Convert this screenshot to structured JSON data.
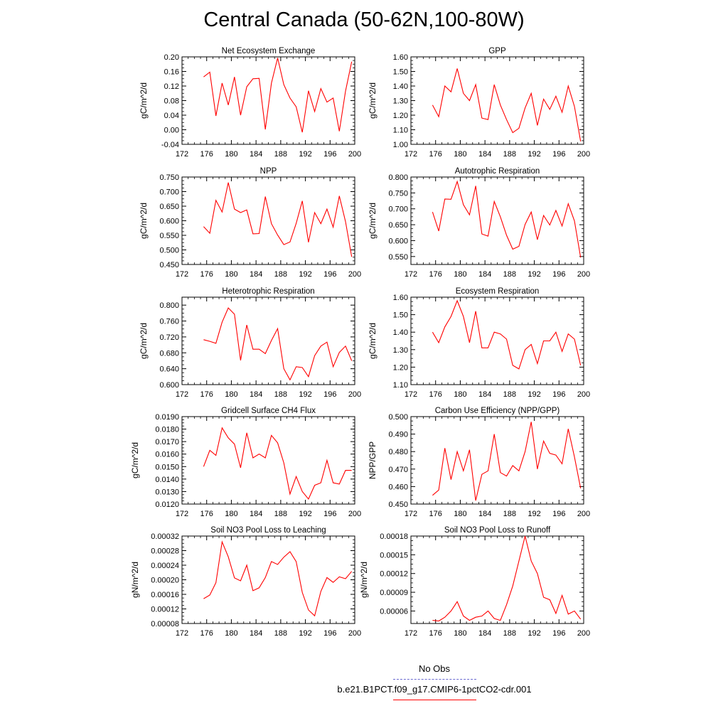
{
  "title": "Central Canada (50-62N,100-80W)",
  "colors": {
    "series": "#ff0000",
    "obs": "#6a6ad0",
    "axis": "#000000"
  },
  "legend": {
    "obs_label": "No Obs",
    "model_label": "b.e21.B1PCT.f09_g17.CMIP6-1pctCO2-cdr.001"
  },
  "chart_data": [
    {
      "type": "line",
      "title": "Net Ecosystem Exchange",
      "ylabel": "gC/m^2/d",
      "xlim": [
        172,
        200
      ],
      "ylim": [
        -0.04,
        0.2
      ],
      "yticks": [
        "-0.04",
        "0.00",
        "0.04",
        "0.08",
        "0.12",
        "0.16",
        "0.20"
      ],
      "xticks": [
        "172",
        "176",
        "180",
        "184",
        "188",
        "192",
        "196",
        "200"
      ],
      "x": [
        175.5,
        176.5,
        177.5,
        178.5,
        179.5,
        180.5,
        181.5,
        182.5,
        183.5,
        184.5,
        185.5,
        186.5,
        187.5,
        188.5,
        189.5,
        190.5,
        191.5,
        192.5,
        193.5,
        194.5,
        195.5,
        196.5,
        197.5,
        198.5,
        199.5
      ],
      "y": [
        0.145,
        0.158,
        0.038,
        0.128,
        0.068,
        0.145,
        0.04,
        0.118,
        0.14,
        0.141,
        0.001,
        0.128,
        0.197,
        0.124,
        0.087,
        0.063,
        -0.007,
        0.107,
        0.05,
        0.113,
        0.076,
        0.087,
        -0.004,
        0.106,
        0.187
      ]
    },
    {
      "type": "line",
      "title": "GPP",
      "ylabel": "gC/m^2/d",
      "xlim": [
        172,
        200
      ],
      "ylim": [
        1.0,
        1.6
      ],
      "yticks": [
        "1.00",
        "1.10",
        "1.20",
        "1.30",
        "1.40",
        "1.50",
        "1.60"
      ],
      "xticks": [
        "172",
        "176",
        "180",
        "184",
        "188",
        "192",
        "196",
        "200"
      ],
      "x": [
        175.5,
        176.5,
        177.5,
        178.5,
        179.5,
        180.5,
        181.5,
        182.5,
        183.5,
        184.5,
        185.5,
        186.5,
        187.5,
        188.5,
        189.5,
        190.5,
        191.5,
        192.5,
        193.5,
        194.5,
        195.5,
        196.5,
        197.5,
        198.5,
        199.5
      ],
      "y": [
        1.27,
        1.19,
        1.4,
        1.36,
        1.52,
        1.35,
        1.3,
        1.41,
        1.18,
        1.17,
        1.41,
        1.27,
        1.17,
        1.08,
        1.11,
        1.25,
        1.35,
        1.13,
        1.31,
        1.24,
        1.33,
        1.22,
        1.4,
        1.26,
        1.02
      ]
    },
    {
      "type": "line",
      "title": "NPP",
      "ylabel": "gC/m^2/d",
      "xlim": [
        172,
        200
      ],
      "ylim": [
        0.45,
        0.75
      ],
      "yticks": [
        "0.450",
        "0.500",
        "0.550",
        "0.600",
        "0.650",
        "0.700",
        "0.750"
      ],
      "xticks": [
        "172",
        "176",
        "180",
        "184",
        "188",
        "192",
        "196",
        "200"
      ],
      "x": [
        175.5,
        176.5,
        177.5,
        178.5,
        179.5,
        180.5,
        181.5,
        182.5,
        183.5,
        184.5,
        185.5,
        186.5,
        187.5,
        188.5,
        189.5,
        190.5,
        191.5,
        192.5,
        193.5,
        194.5,
        195.5,
        196.5,
        197.5,
        198.5,
        199.5
      ],
      "y": [
        0.58,
        0.557,
        0.67,
        0.63,
        0.731,
        0.64,
        0.628,
        0.637,
        0.555,
        0.556,
        0.683,
        0.59,
        0.551,
        0.518,
        0.527,
        0.591,
        0.668,
        0.526,
        0.628,
        0.59,
        0.64,
        0.578,
        0.685,
        0.597,
        0.476
      ]
    },
    {
      "type": "line",
      "title": "Autotrophic Respiration",
      "ylabel": "gC/m^2/d",
      "xlim": [
        172,
        200
      ],
      "ylim": [
        0.525,
        0.8
      ],
      "yticks": [
        "0.550",
        "0.600",
        "0.650",
        "0.700",
        "0.750",
        "0.800"
      ],
      "xticks": [
        "172",
        "176",
        "180",
        "184",
        "188",
        "192",
        "196",
        "200"
      ],
      "x": [
        175.5,
        176.5,
        177.5,
        178.5,
        179.5,
        180.5,
        181.5,
        182.5,
        183.5,
        184.5,
        185.5,
        186.5,
        187.5,
        188.5,
        189.5,
        190.5,
        191.5,
        192.5,
        193.5,
        194.5,
        195.5,
        196.5,
        197.5,
        198.5,
        199.5
      ],
      "y": [
        0.69,
        0.63,
        0.731,
        0.73,
        0.786,
        0.713,
        0.681,
        0.772,
        0.621,
        0.614,
        0.723,
        0.675,
        0.617,
        0.573,
        0.582,
        0.651,
        0.69,
        0.603,
        0.679,
        0.649,
        0.695,
        0.646,
        0.716,
        0.662,
        0.547
      ]
    },
    {
      "type": "line",
      "title": "Heterotrophic Respiration",
      "ylabel": "gC/m^2/d",
      "xlim": [
        172,
        200
      ],
      "ylim": [
        0.6,
        0.82
      ],
      "yticks": [
        "0.600",
        "0.640",
        "0.680",
        "0.720",
        "0.760",
        "0.800"
      ],
      "xticks": [
        "172",
        "176",
        "180",
        "184",
        "188",
        "192",
        "196",
        "200"
      ],
      "x": [
        175.5,
        176.5,
        177.5,
        178.5,
        179.5,
        180.5,
        181.5,
        182.5,
        183.5,
        184.5,
        185.5,
        186.5,
        187.5,
        188.5,
        189.5,
        190.5,
        191.5,
        192.5,
        193.5,
        194.5,
        195.5,
        196.5,
        197.5,
        198.5,
        199.5
      ],
      "y": [
        0.713,
        0.709,
        0.704,
        0.757,
        0.793,
        0.777,
        0.661,
        0.75,
        0.689,
        0.689,
        0.678,
        0.711,
        0.741,
        0.64,
        0.612,
        0.645,
        0.643,
        0.62,
        0.673,
        0.697,
        0.707,
        0.645,
        0.681,
        0.697,
        0.66
      ]
    },
    {
      "type": "line",
      "title": "Ecosystem Respiration",
      "ylabel": "gC/m^2/d",
      "xlim": [
        172,
        200
      ],
      "ylim": [
        1.1,
        1.6
      ],
      "yticks": [
        "1.10",
        "1.20",
        "1.30",
        "1.40",
        "1.50",
        "1.60"
      ],
      "xticks": [
        "172",
        "176",
        "180",
        "184",
        "188",
        "192",
        "196",
        "200"
      ],
      "x": [
        175.5,
        176.5,
        177.5,
        178.5,
        179.5,
        180.5,
        181.5,
        182.5,
        183.5,
        184.5,
        185.5,
        186.5,
        187.5,
        188.5,
        189.5,
        190.5,
        191.5,
        192.5,
        193.5,
        194.5,
        195.5,
        196.5,
        197.5,
        198.5,
        199.5
      ],
      "y": [
        1.4,
        1.34,
        1.43,
        1.49,
        1.58,
        1.49,
        1.34,
        1.52,
        1.31,
        1.31,
        1.4,
        1.39,
        1.36,
        1.21,
        1.19,
        1.3,
        1.33,
        1.22,
        1.35,
        1.35,
        1.4,
        1.29,
        1.39,
        1.36,
        1.21
      ]
    },
    {
      "type": "line",
      "title": "Gridcell Surface CH4 Flux",
      "ylabel": "gC/m^2/d",
      "xlim": [
        172,
        200
      ],
      "ylim": [
        0.012,
        0.019
      ],
      "yticks": [
        "0.0120",
        "0.0130",
        "0.0140",
        "0.0150",
        "0.0160",
        "0.0170",
        "0.0180",
        "0.0190"
      ],
      "xticks": [
        "172",
        "176",
        "180",
        "184",
        "188",
        "192",
        "196",
        "200"
      ],
      "x": [
        175.5,
        176.5,
        177.5,
        178.5,
        179.5,
        180.5,
        181.5,
        182.5,
        183.5,
        184.5,
        185.5,
        186.5,
        187.5,
        188.5,
        189.5,
        190.5,
        191.5,
        192.5,
        193.5,
        194.5,
        195.5,
        196.5,
        197.5,
        198.5,
        199.5
      ],
      "y": [
        0.015,
        0.0163,
        0.0159,
        0.0181,
        0.0173,
        0.0168,
        0.0149,
        0.0177,
        0.0157,
        0.016,
        0.0157,
        0.0175,
        0.0169,
        0.0153,
        0.0128,
        0.0142,
        0.013,
        0.0124,
        0.0135,
        0.0137,
        0.0155,
        0.0137,
        0.0136,
        0.0147,
        0.0147
      ]
    },
    {
      "type": "line",
      "title": "Carbon Use Efficiency (NPP/GPP)",
      "ylabel": "NPP/GPP",
      "xlim": [
        172,
        200
      ],
      "ylim": [
        0.45,
        0.5
      ],
      "yticks": [
        "0.450",
        "0.460",
        "0.470",
        "0.480",
        "0.490",
        "0.500"
      ],
      "xticks": [
        "172",
        "176",
        "180",
        "184",
        "188",
        "192",
        "196",
        "200"
      ],
      "x": [
        175.5,
        176.5,
        177.5,
        178.5,
        179.5,
        180.5,
        181.5,
        182.5,
        183.5,
        184.5,
        185.5,
        186.5,
        187.5,
        188.5,
        189.5,
        190.5,
        191.5,
        192.5,
        193.5,
        194.5,
        195.5,
        196.5,
        197.5,
        198.5,
        199.5
      ],
      "y": [
        0.455,
        0.458,
        0.482,
        0.464,
        0.48,
        0.469,
        0.481,
        0.452,
        0.467,
        0.469,
        0.49,
        0.468,
        0.466,
        0.472,
        0.469,
        0.48,
        0.497,
        0.47,
        0.486,
        0.479,
        0.478,
        0.473,
        0.493,
        0.477,
        0.459
      ]
    },
    {
      "type": "line",
      "title": "Soil NO3 Pool Loss to Leaching",
      "ylabel": "gN/m^2/d",
      "xlim": [
        172,
        200
      ],
      "ylim": [
        8e-05,
        0.00032
      ],
      "yticks": [
        "0.00008",
        "0.00012",
        "0.00016",
        "0.00020",
        "0.00024",
        "0.00028",
        "0.00032"
      ],
      "xticks": [
        "172",
        "176",
        "180",
        "184",
        "188",
        "192",
        "196",
        "200"
      ],
      "x": [
        175.5,
        176.5,
        177.5,
        178.5,
        179.5,
        180.5,
        181.5,
        182.5,
        183.5,
        184.5,
        185.5,
        186.5,
        187.5,
        188.5,
        189.5,
        190.5,
        191.5,
        192.5,
        193.5,
        194.5,
        195.5,
        196.5,
        197.5,
        198.5,
        199.5
      ],
      "y": [
        0.000148,
        0.000158,
        0.000192,
        0.000304,
        0.000263,
        0.000205,
        0.000197,
        0.00024,
        0.00017,
        0.000178,
        0.000206,
        0.00025,
        0.000242,
        0.000262,
        0.000277,
        0.00025,
        0.000165,
        0.000117,
        0.000101,
        0.000168,
        0.000206,
        0.000193,
        0.000208,
        0.000203,
        0.000223
      ]
    },
    {
      "type": "line",
      "title": "Soil NO3 Pool Loss to Runoff",
      "ylabel": "gN/m^2/d",
      "xlim": [
        172,
        200
      ],
      "ylim": [
        4e-05,
        0.00018
      ],
      "yticks": [
        "0.00006",
        "0.00009",
        "0.00012",
        "0.00015",
        "0.00018"
      ],
      "xticks": [
        "172",
        "176",
        "180",
        "184",
        "188",
        "192",
        "196",
        "200"
      ],
      "x": [
        175.5,
        176.5,
        177.5,
        178.5,
        179.5,
        180.5,
        181.5,
        182.5,
        183.5,
        184.5,
        185.5,
        186.5,
        187.5,
        188.5,
        189.5,
        190.5,
        191.5,
        192.5,
        193.5,
        194.5,
        195.5,
        196.5,
        197.5,
        198.5,
        199.5
      ],
      "y": [
        4.5e-05,
        4.4e-05,
        5e-05,
        6e-05,
        7.5e-05,
        5.2e-05,
        4.5e-05,
        5e-05,
        5.2e-05,
        6e-05,
        4.8e-05,
        4.5e-05,
        7e-05,
        0.0001,
        0.00014,
        0.00018,
        0.00014,
        0.00012,
        8.2e-05,
        7.8e-05,
        5.6e-05,
        8.5e-05,
        5.5e-05,
        6e-05,
        4.7e-05
      ]
    }
  ]
}
